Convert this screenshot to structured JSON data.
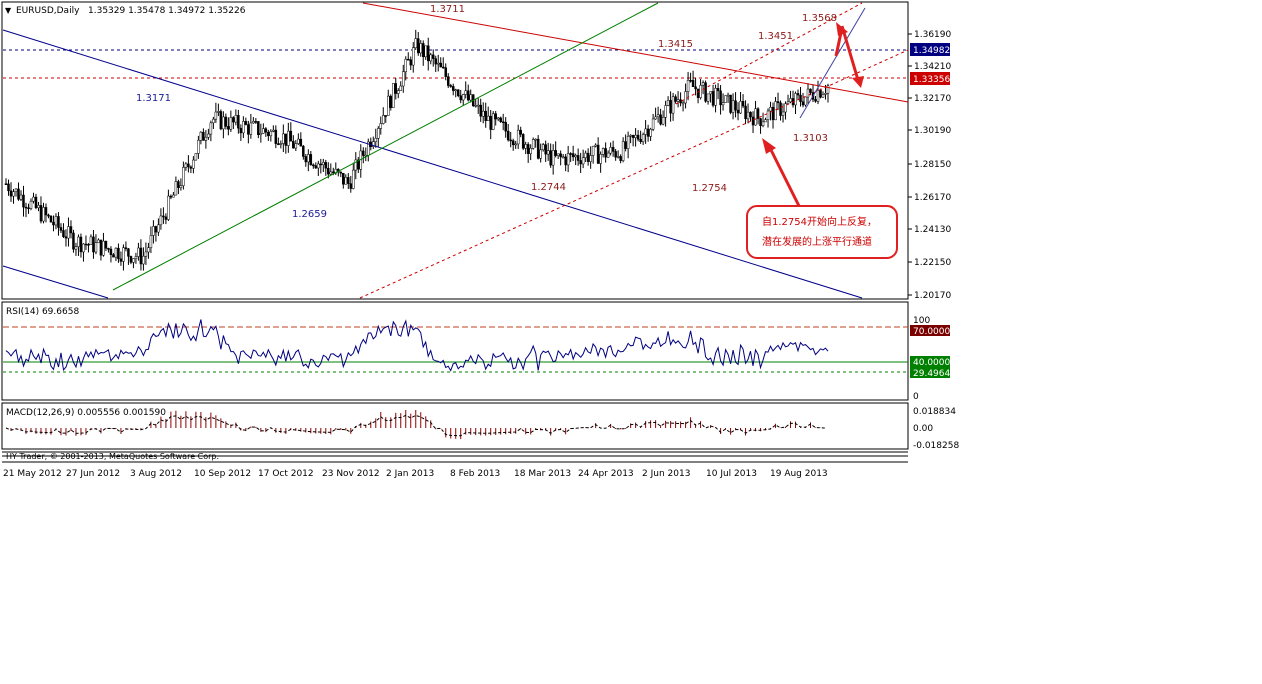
{
  "header": {
    "arrow": "▼",
    "symbol": "EURUSD,Daily",
    "ohlc": "1.35329 1.35478 1.34972 1.35226"
  },
  "price_axis": {
    "ticks": [
      "1.36190",
      "1.34210",
      "1.32170",
      "1.30190",
      "1.28150",
      "1.26170",
      "1.24130",
      "1.22150",
      "1.20170"
    ],
    "current_price": "1.34982",
    "marker_price": "1.33356"
  },
  "annotations": {
    "high_1": "1.3711",
    "level_1": "1.3415",
    "high_2": "1.3451",
    "high_3": "1.3568",
    "level_left": "1.3171",
    "low_1": "1.2659",
    "low_2": "1.2744",
    "low_3": "1.2754",
    "low_4": "1.3103",
    "callout_line1": "自1.2754开始向上反复，",
    "callout_line2": "潜在发展的上涨平行通道"
  },
  "rsi": {
    "title": "RSI(14) 69.6658",
    "levels": [
      "70.00000",
      "40.00000",
      "29.49640"
    ],
    "top_tick": "100",
    "bottom_tick": "0"
  },
  "macd": {
    "title": "MACD(12,26,9) 0.005556 0.001590",
    "ticks": [
      "0.018834",
      "0.00",
      "-0.018258"
    ]
  },
  "copyright": "HY Trader, © 2001-2013, MetaQuotes Software Corp.",
  "date_axis": [
    "21 May 2012",
    "27 Jun 2012",
    "3 Aug 2012",
    "10 Sep 2012",
    "17 Oct 2012",
    "23 Nov 2012",
    "2 Jan 2013",
    "8 Feb 2013",
    "18 Mar 2013",
    "24 Apr 2013",
    "2 Jun 2013",
    "10 Jul 2013",
    "19 Aug 2013"
  ],
  "colors": {
    "candle": "#000000",
    "resistance_line": "#cc0000",
    "support_line": "#00008b",
    "trend_line": "#008000",
    "callout_border": "#e02020",
    "current_price_bg": "#000080",
    "marker_price_bg": "#cc0000",
    "rsi_line": "#000080",
    "macd_hist": "#8b0000"
  },
  "chart_data": {
    "type": "line",
    "title": "",
    "xlabel": "",
    "ylabel": "",
    "ylim": [
      1.2017,
      1.3619
    ],
    "x": [
      "21 May 2012",
      "27 Jun 2012",
      "3 Aug 2012",
      "10 Sep 2012",
      "17 Oct 2012",
      "23 Nov 2012",
      "2 Jan 2013",
      "8 Feb 2013",
      "18 Mar 2013",
      "24 Apr 2013",
      "2 Jun 2013",
      "10 Jul 2013",
      "19 Aug 2013"
    ],
    "series": [
      {
        "values": [
          1.27,
          1.235,
          1.225,
          1.31,
          1.3,
          1.27,
          1.355,
          1.31,
          1.285,
          1.29,
          1.33,
          1.31,
          1.33
        ]
      }
    ],
    "grid": true
  }
}
